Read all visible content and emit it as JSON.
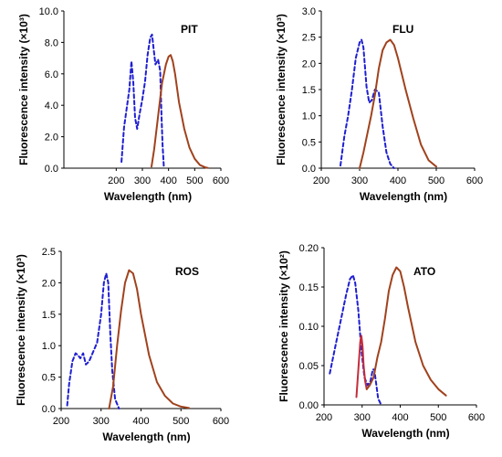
{
  "chart_data": [
    {
      "type": "line",
      "title": "PIT",
      "xlabel": "Wavelength (nm)",
      "ylabel": "Fluorescence intensity (×10³)",
      "xlim": [
        0,
        600
      ],
      "ylim": [
        0,
        10
      ],
      "xticks": [
        "200",
        "300",
        "400",
        "500",
        "600"
      ],
      "yticks": [
        "0.0",
        "2.0",
        "4.0",
        "6.0",
        "8.0",
        "10.0"
      ],
      "series": [
        {
          "color": "#1f1fd1",
          "dash": true,
          "x": [
            220,
            230,
            240,
            250,
            258,
            265,
            272,
            280,
            290,
            300,
            310,
            320,
            330,
            337,
            343,
            350,
            360,
            368,
            373,
            377,
            382
          ],
          "y": [
            0.4,
            2.6,
            3.8,
            5.0,
            6.8,
            5.5,
            3.2,
            2.5,
            3.5,
            4.4,
            5.5,
            7.2,
            8.3,
            8.5,
            7.6,
            6.6,
            6.9,
            6.2,
            3.4,
            1.5,
            0.1
          ]
        },
        {
          "color": "#a0421d",
          "dash": false,
          "x": [
            335,
            345,
            360,
            375,
            390,
            400,
            408,
            416,
            425,
            440,
            460,
            480,
            500,
            520,
            540,
            550
          ],
          "y": [
            0.1,
            1.2,
            3.3,
            5.4,
            6.6,
            7.1,
            7.2,
            6.8,
            6.0,
            4.2,
            2.5,
            1.3,
            0.6,
            0.2,
            0.05,
            0.02
          ]
        }
      ]
    },
    {
      "type": "line",
      "title": "FLU",
      "xlabel": "Wavelength (nm)",
      "ylabel": "Fluorescence intensity (×10³)",
      "xlim": [
        200,
        600
      ],
      "ylim": [
        0,
        3
      ],
      "xticks": [
        "200",
        "300",
        "400",
        "500",
        "600"
      ],
      "yticks": [
        "0.0",
        "0.5",
        "1.0",
        "1.5",
        "2.0",
        "2.5",
        "3.0"
      ],
      "series": [
        {
          "color": "#1f1fd1",
          "dash": true,
          "x": [
            250,
            260,
            270,
            280,
            290,
            300,
            305,
            310,
            318,
            325,
            332,
            340,
            350,
            360,
            370,
            380,
            390
          ],
          "y": [
            0.05,
            0.6,
            1.0,
            1.5,
            2.1,
            2.4,
            2.45,
            2.3,
            1.55,
            1.25,
            1.3,
            1.5,
            1.45,
            0.8,
            0.3,
            0.08,
            0.0
          ]
        },
        {
          "color": "#a0421d",
          "dash": false,
          "x": [
            300,
            310,
            320,
            330,
            340,
            350,
            360,
            370,
            380,
            390,
            400,
            420,
            440,
            460,
            480,
            500
          ],
          "y": [
            0.0,
            0.3,
            0.65,
            1.0,
            1.4,
            1.9,
            2.25,
            2.4,
            2.45,
            2.35,
            2.1,
            1.5,
            0.95,
            0.45,
            0.15,
            0.03
          ]
        }
      ]
    },
    {
      "type": "line",
      "title": "ROS",
      "xlabel": "Wavelength (nm)",
      "ylabel": "Fluorescence intensity (×10³)",
      "xlim": [
        200,
        600
      ],
      "ylim": [
        0,
        2.5
      ],
      "xticks": [
        "200",
        "300",
        "400",
        "500",
        "600"
      ],
      "yticks": [
        "0.0",
        "0.5",
        "1.0",
        "1.5",
        "2.0",
        "2.5"
      ],
      "series": [
        {
          "color": "#1f1fd1",
          "dash": true,
          "x": [
            215,
            220,
            228,
            236,
            242,
            248,
            255,
            262,
            270,
            280,
            290,
            300,
            307,
            313,
            318,
            323,
            328,
            335,
            345
          ],
          "y": [
            0.05,
            0.4,
            0.75,
            0.88,
            0.85,
            0.8,
            0.88,
            0.7,
            0.75,
            0.9,
            1.05,
            1.5,
            2.0,
            2.15,
            2.0,
            1.2,
            0.6,
            0.15,
            0.0
          ]
        },
        {
          "color": "#a0421d",
          "dash": false,
          "x": [
            320,
            330,
            340,
            350,
            360,
            370,
            380,
            390,
            400,
            420,
            440,
            460,
            480,
            500,
            520
          ],
          "y": [
            0.0,
            0.35,
            1.0,
            1.55,
            2.0,
            2.2,
            2.15,
            1.9,
            1.5,
            0.85,
            0.42,
            0.2,
            0.08,
            0.03,
            0.01
          ]
        }
      ]
    },
    {
      "type": "line",
      "title": "ATO",
      "xlabel": "Wavelength (nm)",
      "ylabel": "Fluorescence intensity (×10²)",
      "xlim": [
        200,
        600
      ],
      "ylim": [
        0,
        0.2
      ],
      "xticks": [
        "200",
        "300",
        "400",
        "500",
        "600"
      ],
      "yticks": [
        "0.00",
        "0.05",
        "0.10",
        "0.15",
        "0.20"
      ],
      "series": [
        {
          "color": "#1f1fd1",
          "dash": true,
          "x": [
            215,
            230,
            245,
            258,
            268,
            276,
            282,
            290,
            298,
            306,
            314,
            322,
            328,
            332,
            336,
            342,
            350
          ],
          "y": [
            0.04,
            0.075,
            0.11,
            0.14,
            0.16,
            0.165,
            0.155,
            0.12,
            0.07,
            0.035,
            0.025,
            0.03,
            0.045,
            0.045,
            0.03,
            0.008,
            0.0
          ]
        },
        {
          "color": "#c42d3b",
          "dash": false,
          "x": [
            285,
            290,
            295,
            298,
            301,
            304,
            308,
            312
          ],
          "y": [
            0.01,
            0.045,
            0.08,
            0.088,
            0.075,
            0.05,
            0.03,
            0.02
          ]
        },
        {
          "color": "#a0421d",
          "dash": false,
          "x": [
            312,
            320,
            330,
            340,
            350,
            360,
            370,
            380,
            390,
            400,
            410,
            420,
            440,
            460,
            480,
            500,
            520
          ],
          "y": [
            0.02,
            0.025,
            0.035,
            0.06,
            0.08,
            0.11,
            0.145,
            0.165,
            0.175,
            0.17,
            0.15,
            0.125,
            0.08,
            0.05,
            0.032,
            0.02,
            0.012
          ]
        }
      ]
    }
  ]
}
